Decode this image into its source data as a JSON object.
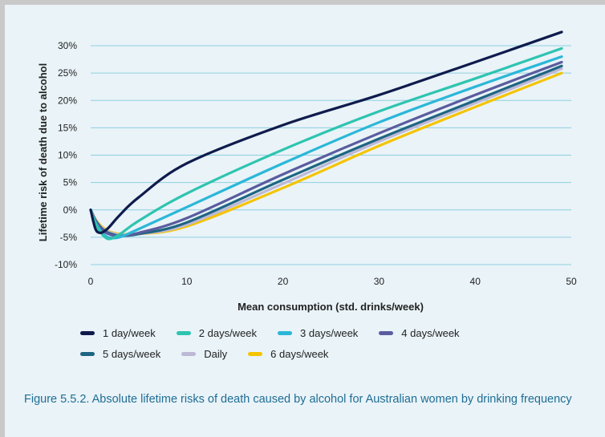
{
  "chart_data": {
    "type": "line",
    "xlabel": "Mean consumption (std. drinks/week)",
    "ylabel": "Lifetime risk of death due to alcohol",
    "xlim": [
      0,
      50
    ],
    "ylim": [
      -10,
      30
    ],
    "x_ticks": [
      "0",
      "10",
      "20",
      "30",
      "40",
      "50"
    ],
    "y_ticks": [
      "-10%",
      "-5%",
      "0%",
      "5%",
      "10%",
      "15%",
      "20%",
      "25%",
      "30%"
    ],
    "grid": true,
    "legend_position": "bottom",
    "series": [
      {
        "name": "1 day/week",
        "color": "#0f1b4c",
        "x": [
          0,
          0.5,
          1,
          1.5,
          2,
          3,
          5,
          10,
          20,
          30,
          40,
          49
        ],
        "y": [
          0,
          -3.5,
          -4.2,
          -3.8,
          -3.0,
          -1.0,
          2.3,
          8.5,
          15.5,
          21.0,
          27.0,
          32.5
        ]
      },
      {
        "name": "2 days/week",
        "color": "#2ec4b0",
        "x": [
          0,
          0.5,
          1,
          1.5,
          2,
          3,
          5,
          10,
          20,
          30,
          40,
          49
        ],
        "y": [
          0,
          -2.5,
          -4.0,
          -5.0,
          -5.3,
          -4.5,
          -2.0,
          3.0,
          11.0,
          18.0,
          24.0,
          29.5
        ]
      },
      {
        "name": "3 days/week",
        "color": "#2bb7d8",
        "x": [
          0,
          0.5,
          1,
          1.5,
          2,
          3,
          5,
          10,
          20,
          30,
          40,
          49
        ],
        "y": [
          0,
          -2.3,
          -3.8,
          -4.7,
          -5.1,
          -5.0,
          -3.5,
          0.5,
          8.5,
          16.0,
          22.5,
          28.0
        ]
      },
      {
        "name": "4 days/week",
        "color": "#5a5c9e",
        "x": [
          0,
          0.5,
          1,
          1.5,
          2,
          3,
          5,
          10,
          20,
          30,
          40,
          49
        ],
        "y": [
          0,
          -2.0,
          -3.3,
          -4.1,
          -4.5,
          -4.8,
          -4.2,
          -1.5,
          6.5,
          14.0,
          21.0,
          27.0
        ]
      },
      {
        "name": "5 days/week",
        "color": "#1e6582",
        "x": [
          0,
          0.5,
          1,
          1.5,
          2,
          3,
          5,
          10,
          20,
          30,
          40,
          49
        ],
        "y": [
          0,
          -1.9,
          -3.1,
          -3.9,
          -4.3,
          -4.7,
          -4.4,
          -2.3,
          5.5,
          13.0,
          20.0,
          26.3
        ]
      },
      {
        "name": "Daily",
        "color": "#bdb8d6",
        "x": [
          0,
          0.5,
          1,
          1.5,
          2,
          3,
          5,
          10,
          20,
          30,
          40,
          49
        ],
        "y": [
          0,
          -1.8,
          -3.0,
          -3.7,
          -4.1,
          -4.5,
          -4.4,
          -2.7,
          4.8,
          12.5,
          19.5,
          25.8
        ]
      },
      {
        "name": "6 days/week",
        "color": "#f5c400",
        "x": [
          0,
          0.5,
          1,
          1.5,
          2,
          3,
          5,
          10,
          20,
          30,
          40,
          49
        ],
        "y": [
          0,
          -1.7,
          -2.8,
          -3.5,
          -4.0,
          -4.4,
          -4.4,
          -3.0,
          4.0,
          11.7,
          18.8,
          25.0
        ]
      }
    ],
    "legend_rows": [
      [
        "1 day/week",
        "2 days/week",
        "3 days/week",
        "4 days/week"
      ],
      [
        "5 days/week",
        "Daily",
        "6 days/week"
      ]
    ]
  },
  "caption": "Figure 5.5.2. Absolute lifetime risks of death caused by alcohol for Australian women by drinking frequency"
}
